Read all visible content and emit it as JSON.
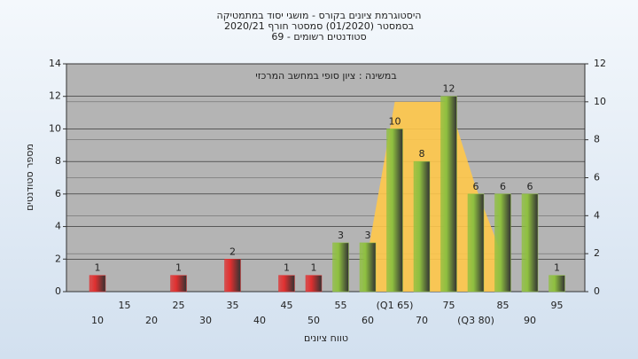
{
  "chart_data": {
    "type": "bar",
    "title": [
      "היסטוגרמת ציונים בקורס - מושגי יסוד במתמטיקה",
      "בסמסטר (01/2020) סמסטר חורף 2020/21",
      "69 - סטודנטים רשומים"
    ],
    "annotation": "במשינה : ציון סופי במחשב המרכזי",
    "x_label": "טווח ציונים",
    "y_label": "מספר סטודנטים",
    "categories": [
      "10",
      "15",
      "20",
      "25",
      "30",
      "35",
      "40",
      "45",
      "50",
      "55",
      "60",
      "(Q1 65)",
      "70",
      "75",
      "(Q3 80)",
      "85",
      "90",
      "95"
    ],
    "values": [
      1,
      0,
      0,
      1,
      0,
      2,
      0,
      1,
      1,
      3,
      3,
      10,
      8,
      12,
      6,
      6,
      6,
      1
    ],
    "colors": [
      "#e03030",
      "#e03030",
      "#e03030",
      "#e03030",
      "#e03030",
      "#e03030",
      "#e03030",
      "#e03030",
      "#e03030",
      "#8fc040",
      "#8fc040",
      "#8fc040",
      "#8fc040",
      "#8fc040",
      "#8fc040",
      "#8fc040",
      "#8fc040",
      "#8fc040"
    ],
    "overlay": {
      "axis": "y2",
      "color": "#ffc84a",
      "values": [
        null,
        null,
        null,
        null,
        null,
        null,
        null,
        null,
        null,
        null,
        2,
        10,
        10,
        10,
        5.5,
        1.8,
        null,
        null
      ]
    },
    "ylim": [
      0,
      14
    ],
    "yticks": [
      0,
      2,
      4,
      6,
      8,
      10,
      12,
      14
    ],
    "y2lim": [
      0,
      12
    ],
    "y2ticks": [
      0,
      2,
      4,
      6,
      8,
      10,
      12
    ],
    "grid": true
  }
}
